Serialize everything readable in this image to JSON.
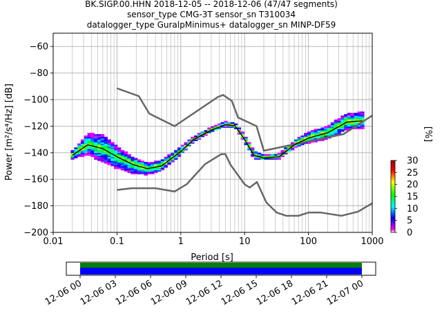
{
  "chart_data": {
    "type": "heatmap",
    "title_lines": [
      "BK.SIGP.00.HHN   2018-12-05 -- 2018-12-06  (47/47 segments)",
      "sensor_type CMG-3T sensor_sn T310034",
      "datalogger_type GuralpMinimus+ datalogger_sn MINP-DF59"
    ],
    "xlabel": "Period [s]",
    "ylabel": "Power [m²/s⁴/Hz] [dB]",
    "x_scale": "log",
    "xlim": [
      0.01,
      1000
    ],
    "ylim": [
      -200,
      -50
    ],
    "x_ticks": [
      {
        "value": 0.01,
        "label": "0.01"
      },
      {
        "value": 0.1,
        "label": "0.1"
      },
      {
        "value": 1,
        "label": "1"
      },
      {
        "value": 10,
        "label": "10"
      },
      {
        "value": 100,
        "label": "100"
      },
      {
        "value": 1000,
        "label": "1000"
      }
    ],
    "y_ticks": [
      -60,
      -80,
      -100,
      -120,
      -140,
      -160,
      -180,
      -200
    ],
    "grid": true,
    "colorbar": {
      "label": "[%]",
      "range": [
        0,
        30
      ],
      "ticks": [
        "0",
        "5",
        "10",
        "15",
        "20",
        "25",
        "30"
      ],
      "colors": [
        "#ffffff",
        "#ff00ff",
        "#0000ff",
        "#00ffff",
        "#00ff00",
        "#ffff00",
        "#ff0000",
        "#a00000"
      ]
    },
    "noise_model_color": "#666666",
    "nhnm": [
      [
        0.1,
        -91.5
      ],
      [
        0.22,
        -97.4
      ],
      [
        0.32,
        -110.5
      ],
      [
        0.8,
        -120
      ],
      [
        3.8,
        -98
      ],
      [
        4.6,
        -96.5
      ],
      [
        6.3,
        -101
      ],
      [
        7.9,
        -113.5
      ],
      [
        15.4,
        -120
      ],
      [
        20,
        -138.5
      ],
      [
        354.8,
        -126
      ],
      [
        1000,
        -112
      ]
    ],
    "nlnm": [
      [
        0.1,
        -168
      ],
      [
        0.17,
        -166.7
      ],
      [
        0.4,
        -166.7
      ],
      [
        0.8,
        -169.2
      ],
      [
        1.24,
        -163.7
      ],
      [
        2.4,
        -148.6
      ],
      [
        4.3,
        -141.1
      ],
      [
        5,
        -141.1
      ],
      [
        6,
        -149
      ],
      [
        10,
        -163.8
      ],
      [
        12,
        -166.2
      ],
      [
        15.6,
        -162.1
      ],
      [
        21.9,
        -177.5
      ],
      [
        31.6,
        -185
      ],
      [
        45,
        -187.5
      ],
      [
        70,
        -187.5
      ],
      [
        101,
        -185
      ],
      [
        154,
        -185
      ],
      [
        328,
        -187.5
      ],
      [
        600,
        -184.4
      ],
      [
        1000,
        -178
      ]
    ],
    "mode_curve": [
      [
        0.02,
        -142
      ],
      [
        0.035,
        -134
      ],
      [
        0.06,
        -137
      ],
      [
        0.1,
        -143
      ],
      [
        0.18,
        -149
      ],
      [
        0.3,
        -152
      ],
      [
        0.5,
        -150
      ],
      [
        1,
        -139
      ],
      [
        1.6,
        -130
      ],
      [
        3,
        -123
      ],
      [
        5,
        -119
      ],
      [
        7,
        -119.5
      ],
      [
        10,
        -130
      ],
      [
        14,
        -142
      ],
      [
        20,
        -144
      ],
      [
        35,
        -143
      ],
      [
        60,
        -134
      ],
      [
        100,
        -129
      ],
      [
        200,
        -125
      ],
      [
        400,
        -117
      ],
      [
        700,
        -116
      ]
    ],
    "spread": [
      [
        0.02,
        3,
        3
      ],
      [
        0.035,
        8,
        8
      ],
      [
        0.06,
        10,
        10
      ],
      [
        0.1,
        9,
        7
      ],
      [
        0.18,
        7,
        5
      ],
      [
        0.3,
        5,
        4
      ],
      [
        0.5,
        4,
        4
      ],
      [
        1,
        3,
        3
      ],
      [
        1.6,
        2,
        2
      ],
      [
        3,
        2,
        2
      ],
      [
        5,
        2,
        2
      ],
      [
        7,
        2,
        2
      ],
      [
        10,
        3,
        3
      ],
      [
        14,
        3,
        3
      ],
      [
        20,
        2,
        2
      ],
      [
        35,
        2,
        2
      ],
      [
        60,
        3,
        3
      ],
      [
        100,
        4,
        4
      ],
      [
        200,
        5,
        5
      ],
      [
        400,
        6,
        6
      ],
      [
        700,
        6,
        6
      ]
    ]
  },
  "coverage": {
    "time_ticks": [
      "12-06 00",
      "12-06 03",
      "12-06 06",
      "12-06 09",
      "12-06 12",
      "12-06 15",
      "12-06 18",
      "12-06 21",
      "12-07 00"
    ],
    "data_color": "#0000ff",
    "used_color": "#008000"
  }
}
